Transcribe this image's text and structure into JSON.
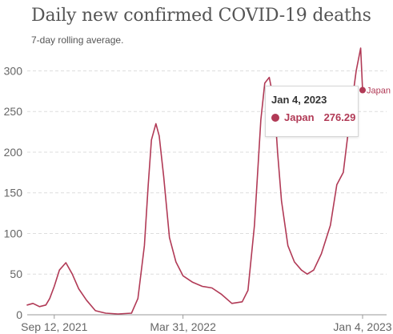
{
  "colors": {
    "series": "#b13a56",
    "grid": "#dddddd",
    "axis": "#999999",
    "text": "#555555"
  },
  "chart_data": {
    "type": "line",
    "title": "Daily new confirmed COVID-19 deaths",
    "subtitle": "7-day rolling average.",
    "x_tick_labels": [
      "Sep 12, 2021",
      "Mar 31, 2022",
      "Jan 4, 2023"
    ],
    "y_ticks": [
      0,
      50,
      100,
      150,
      200,
      250,
      300
    ],
    "ylim": [
      0,
      330
    ],
    "grid": "horizontal dashed",
    "series": [
      {
        "name": "Japan",
        "x": [
          "2021-08-01",
          "2021-08-10",
          "2021-08-20",
          "2021-08-30",
          "2021-09-05",
          "2021-09-12",
          "2021-09-20",
          "2021-09-30",
          "2021-10-10",
          "2021-10-20",
          "2021-11-01",
          "2021-11-15",
          "2021-12-01",
          "2021-12-20",
          "2022-01-10",
          "2022-01-20",
          "2022-01-30",
          "2022-02-05",
          "2022-02-10",
          "2022-02-17",
          "2022-02-22",
          "2022-03-01",
          "2022-03-10",
          "2022-03-20",
          "2022-03-31",
          "2022-04-15",
          "2022-04-30",
          "2022-05-15",
          "2022-05-30",
          "2022-06-15",
          "2022-07-01",
          "2022-07-10",
          "2022-07-20",
          "2022-07-30",
          "2022-08-05",
          "2022-08-12",
          "2022-08-20",
          "2022-08-25",
          "2022-08-31",
          "2022-09-10",
          "2022-09-20",
          "2022-10-01",
          "2022-10-10",
          "2022-10-20",
          "2022-11-01",
          "2022-11-15",
          "2022-11-25",
          "2022-12-05",
          "2022-12-15",
          "2022-12-25",
          "2023-01-01",
          "2023-01-04"
        ],
        "y": [
          12,
          14,
          10,
          12,
          20,
          35,
          55,
          64,
          50,
          32,
          18,
          5,
          2,
          1,
          2,
          20,
          85,
          160,
          215,
          235,
          220,
          170,
          95,
          65,
          48,
          40,
          35,
          33,
          25,
          14,
          16,
          30,
          110,
          240,
          285,
          292,
          260,
          200,
          140,
          85,
          65,
          55,
          50,
          55,
          75,
          110,
          160,
          175,
          240,
          300,
          328,
          276.29
        ]
      }
    ],
    "annotations": [
      {
        "series": "Japan",
        "label": "Japan"
      }
    ]
  },
  "tooltip": {
    "date": "Jan 4, 2023",
    "series_name": "Japan",
    "value": "276.29"
  }
}
